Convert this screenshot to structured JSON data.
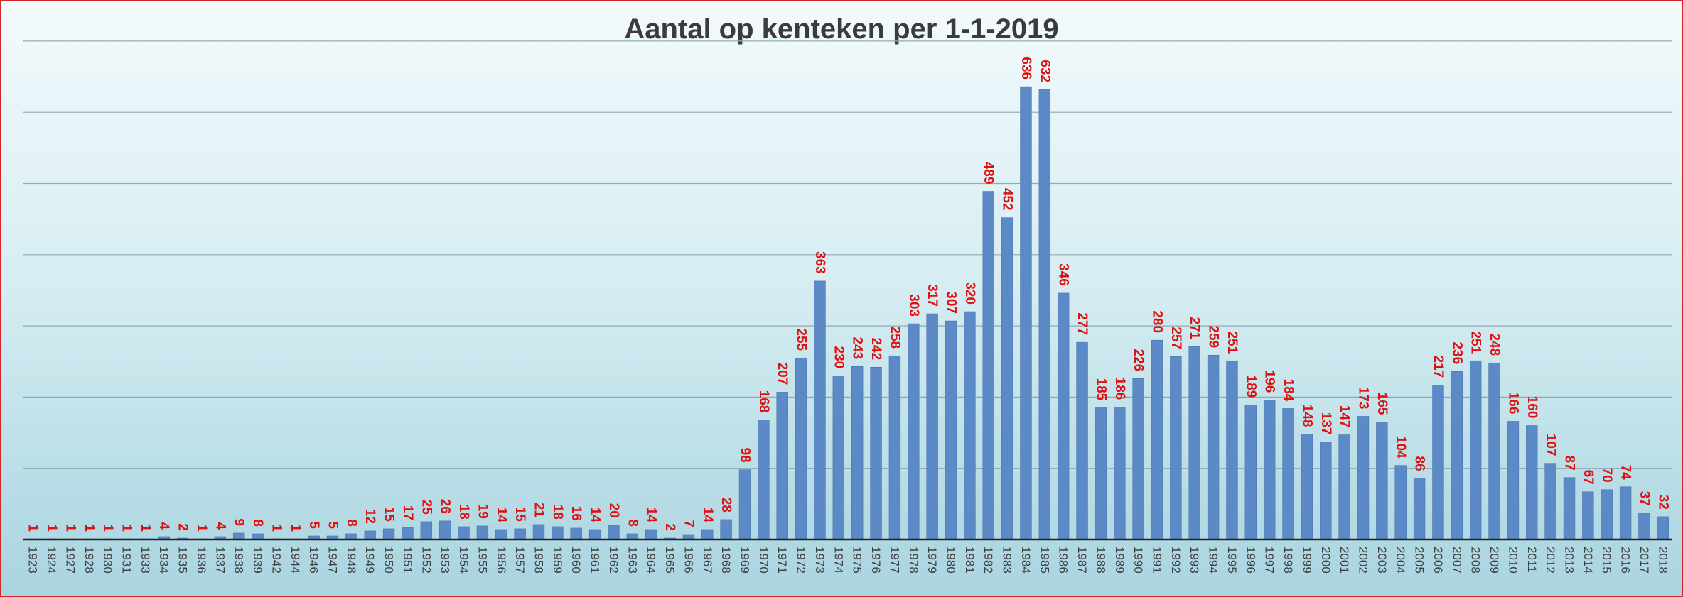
{
  "chart_data": {
    "type": "bar",
    "title": "Aantal op kenteken per 1-1-2019",
    "xlabel": "",
    "ylabel": "",
    "ylim": [
      0,
      700
    ],
    "grid": true,
    "categories": [
      "1923",
      "1924",
      "1927",
      "1928",
      "1930",
      "1931",
      "1933",
      "1934",
      "1935",
      "1936",
      "1937",
      "1938",
      "1939",
      "1942",
      "1944",
      "1946",
      "1947",
      "1948",
      "1949",
      "1950",
      "1951",
      "1952",
      "1953",
      "1954",
      "1955",
      "1956",
      "1957",
      "1958",
      "1959",
      "1960",
      "1961",
      "1962",
      "1963",
      "1964",
      "1965",
      "1966",
      "1967",
      "1968",
      "1969",
      "1970",
      "1971",
      "1972",
      "1973",
      "1974",
      "1975",
      "1976",
      "1977",
      "1978",
      "1979",
      "1980",
      "1981",
      "1982",
      "1983",
      "1984",
      "1985",
      "1986",
      "1987",
      "1988",
      "1989",
      "1990",
      "1991",
      "1992",
      "1993",
      "1994",
      "1995",
      "1996",
      "1997",
      "1998",
      "1999",
      "2000",
      "2001",
      "2002",
      "2003",
      "2004",
      "2005",
      "2006",
      "2007",
      "2008",
      "2009",
      "2010",
      "2011",
      "2012",
      "2013",
      "2014",
      "2015",
      "2016",
      "2017",
      "2018"
    ],
    "values": [
      1,
      1,
      1,
      1,
      1,
      1,
      1,
      4,
      2,
      1,
      4,
      9,
      8,
      1,
      1,
      5,
      5,
      8,
      12,
      15,
      17,
      25,
      26,
      18,
      19,
      14,
      15,
      21,
      18,
      16,
      14,
      20,
      8,
      14,
      2,
      7,
      14,
      28,
      98,
      168,
      207,
      255,
      363,
      230,
      243,
      242,
      258,
      303,
      317,
      307,
      320,
      489,
      452,
      636,
      632,
      346,
      277,
      185,
      186,
      226,
      280,
      257,
      271,
      259,
      251,
      189,
      196,
      184,
      148,
      137,
      147,
      173,
      165,
      104,
      86,
      217,
      236,
      251,
      248,
      166,
      160,
      107,
      87,
      67,
      70,
      74,
      37,
      32
    ],
    "colors": {
      "bar": "#5b8ac6",
      "bar_edge": "#4a76b0",
      "label": "#e01010",
      "grid": "#8faab3",
      "axis": "#222222"
    }
  }
}
